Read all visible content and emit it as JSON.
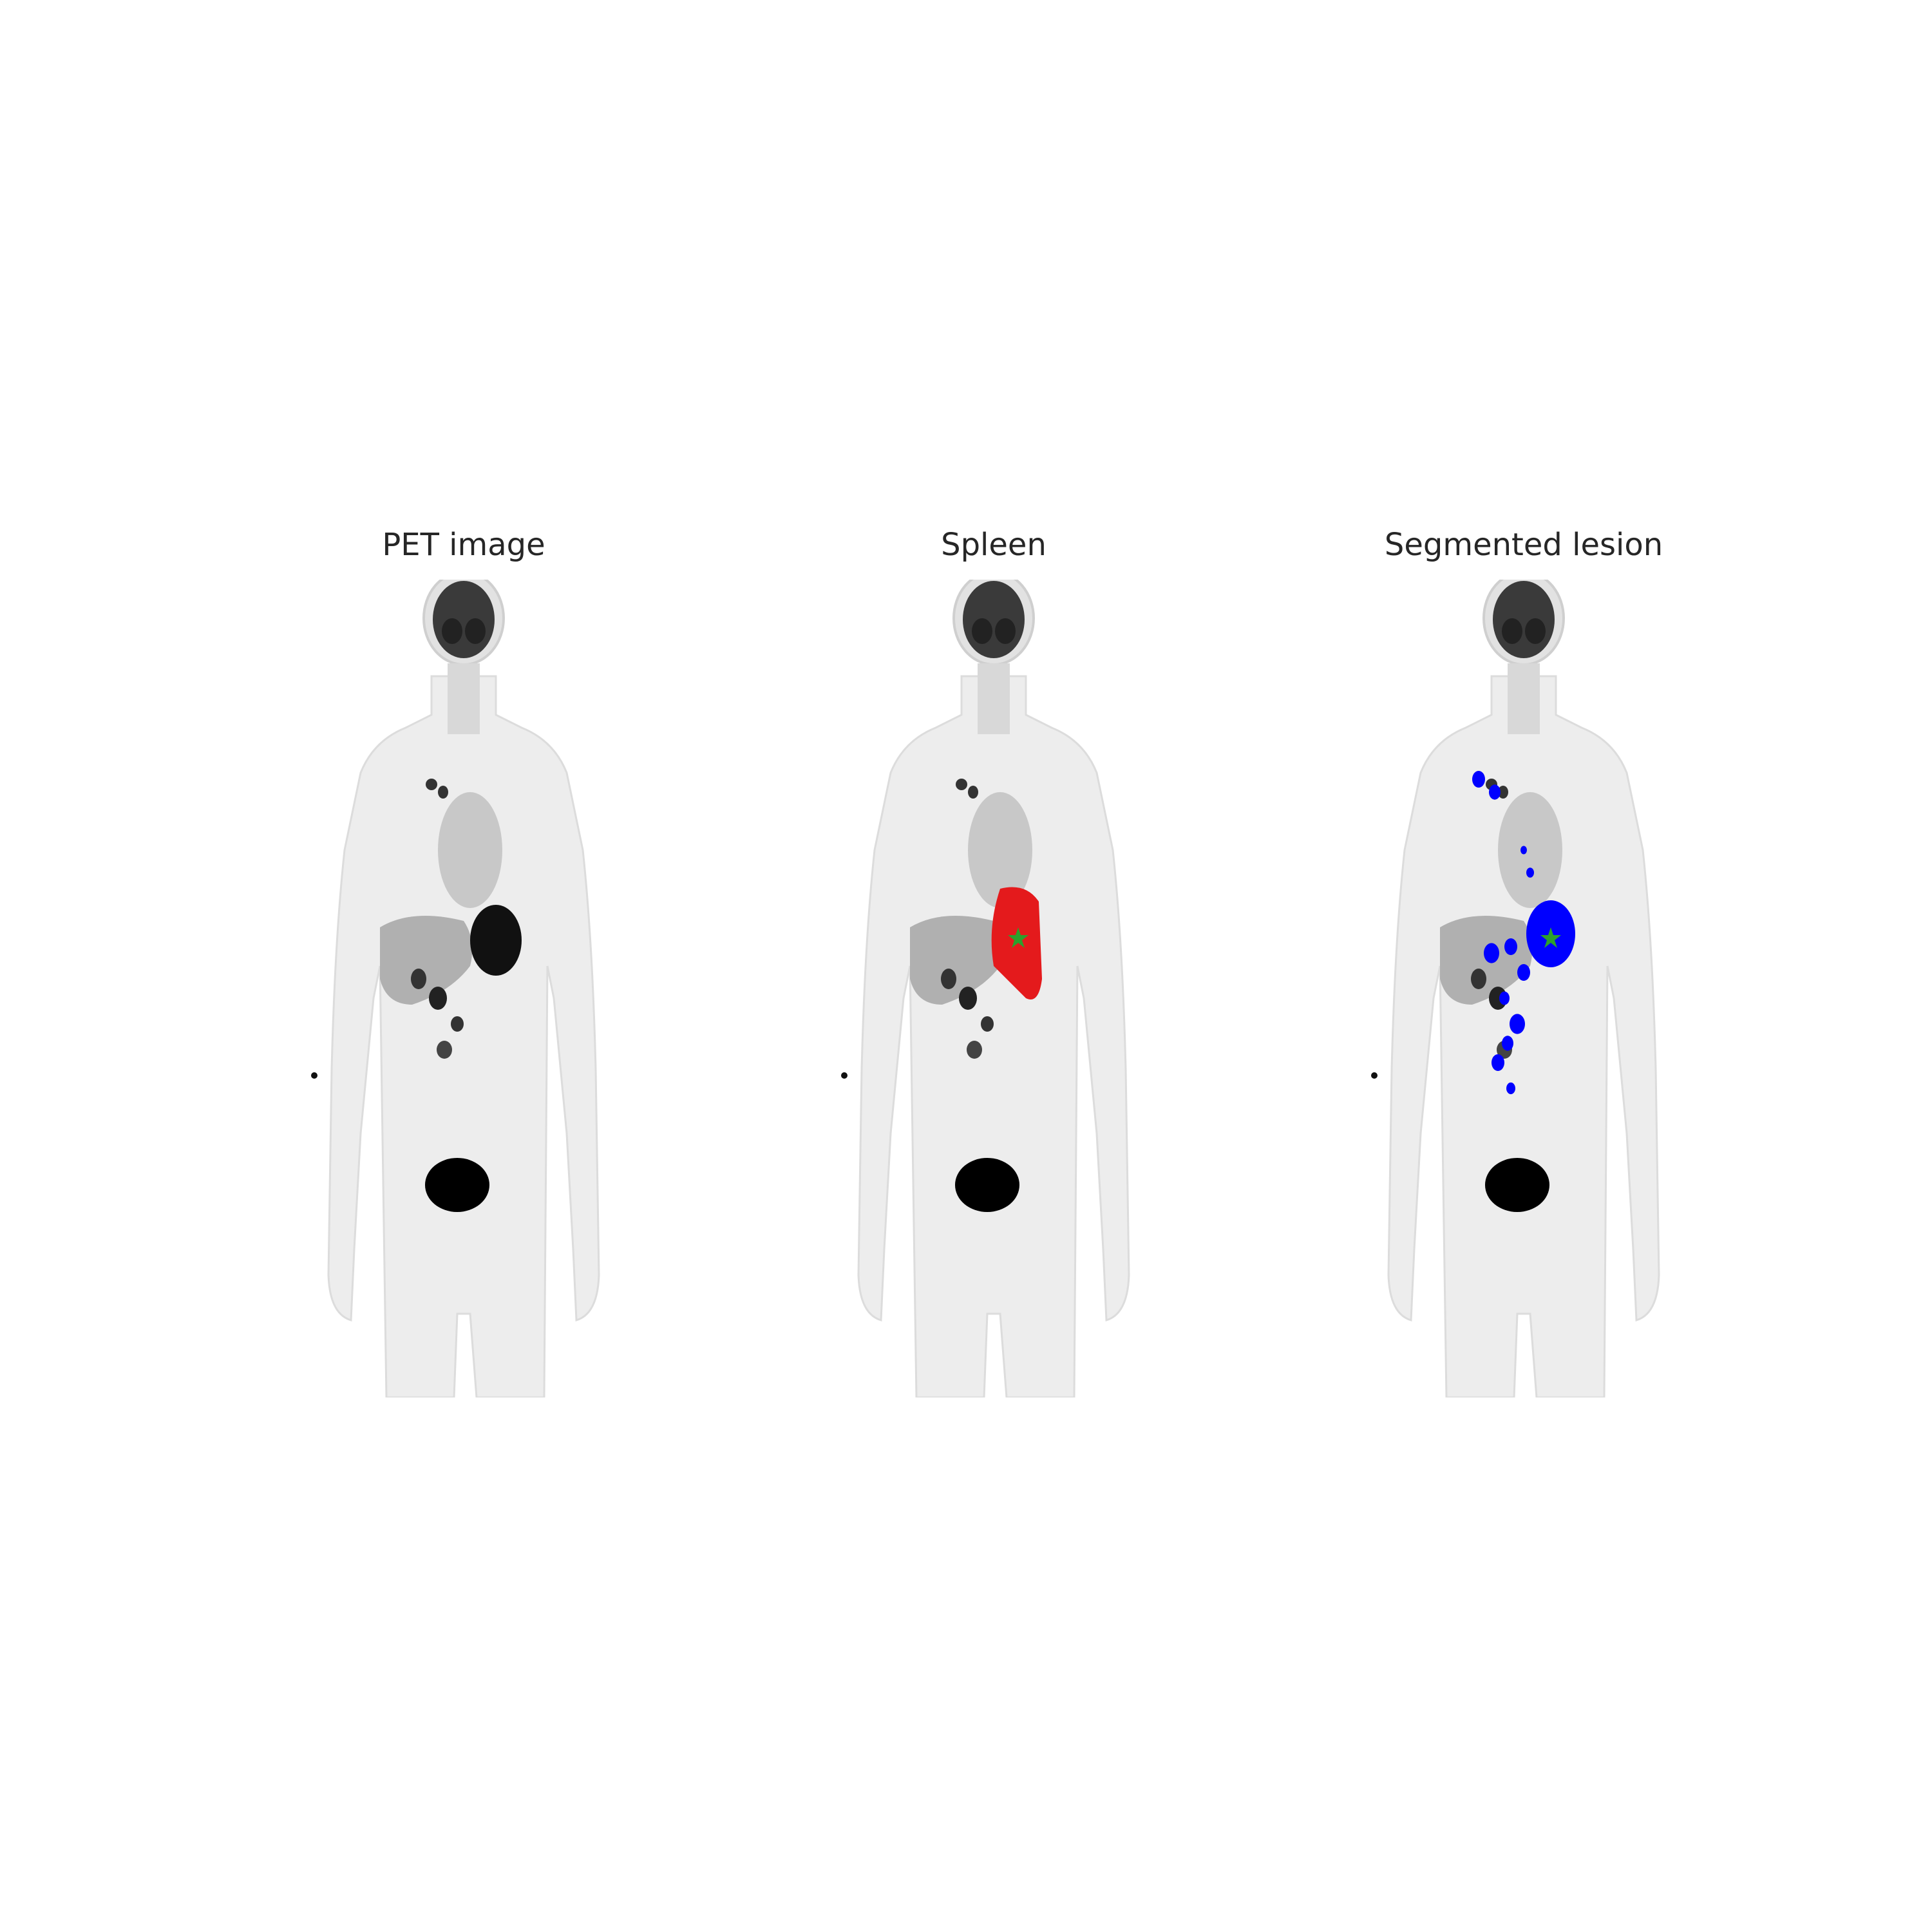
{
  "panels": [
    {
      "title": "PET image",
      "overlay": "none"
    },
    {
      "title": "Spleen",
      "overlay": "spleen-mask",
      "overlay_color": "#e41a1c",
      "marker_color": "#2ca02c"
    },
    {
      "title": "Segmented lesion",
      "overlay": "lesion-mask",
      "overlay_color": "#0000ff",
      "marker_color": "#2ca02c"
    }
  ],
  "colors": {
    "background": "#ffffff",
    "body": "#ededed",
    "organ": "#b0b0b0",
    "dark_uptake": "#111111",
    "spleen": "#e41a1c",
    "lesion": "#0000ff",
    "centroid": "#2ca02c"
  }
}
